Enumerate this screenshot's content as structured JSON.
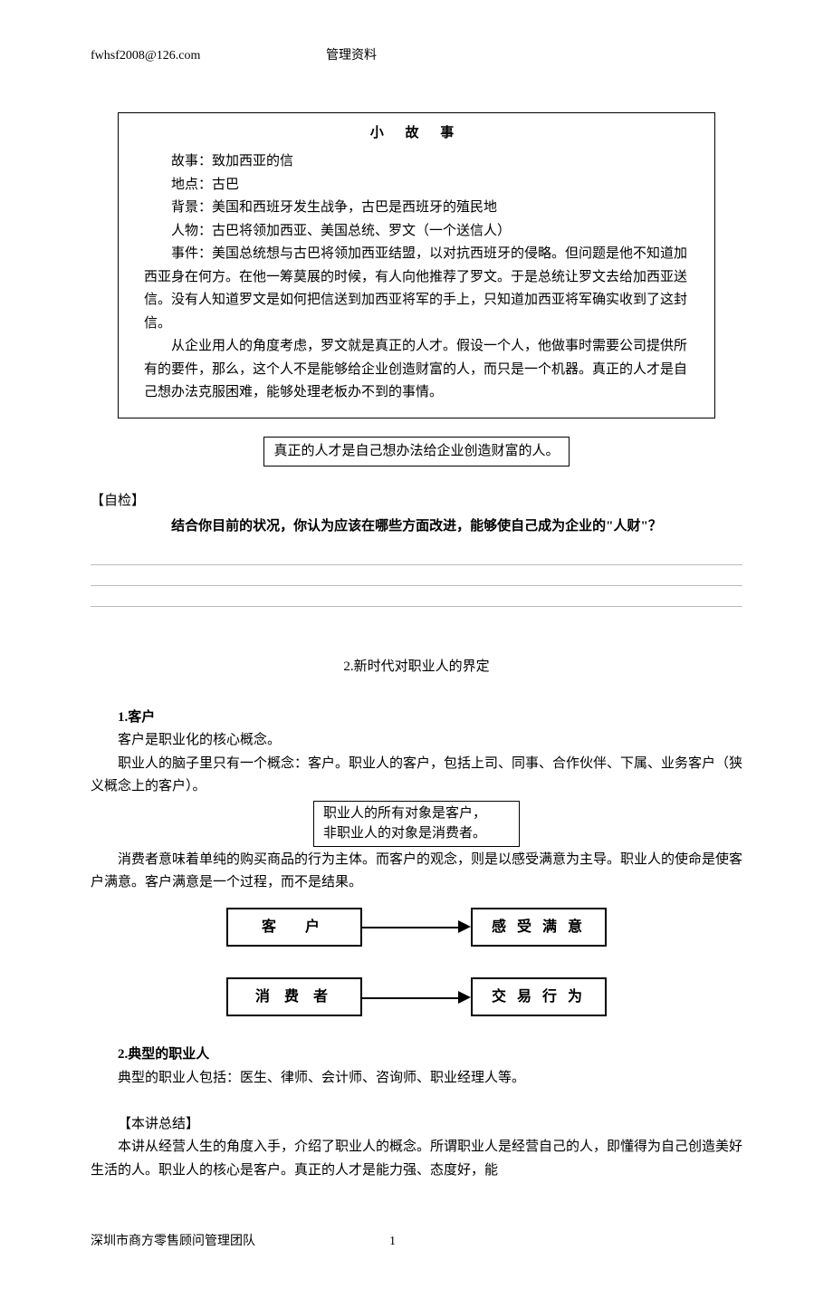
{
  "header": {
    "email": "fwhsf2008@126.com",
    "label": "管理资料"
  },
  "story": {
    "title": "小 故 事",
    "lines": [
      "故事：致加西亚的信",
      "地点：古巴",
      "背景：美国和西班牙发生战争，古巴是西班牙的殖民地",
      "人物：古巴将领加西亚、美国总统、罗文（一个送信人）"
    ],
    "para1": "事件：美国总统想与古巴将领加西亚结盟，以对抗西班牙的侵略。但问题是他不知道加西亚身在何方。在他一筹莫展的时候，有人向他推荐了罗文。于是总统让罗文去给加西亚送信。没有人知道罗文是如何把信送到加西亚将军的手上，只知道加西亚将军确实收到了这封信。",
    "para2": "从企业用人的角度考虑，罗文就是真正的人才。假设一个人，他做事时需要公司提供所有的要件，那么，这个人不是能够给企业创造财富的人，而只是一个机器。真正的人才是自己想办法克服困难，能够处理老板办不到的事情。"
  },
  "center_box": "真正的人才是自己想办法给企业创造财富的人。",
  "self_check": {
    "tag": "【自检】",
    "question": "结合你目前的状况，你认为应该在哪些方面改进，能够使自己成为企业的\"人财\"？"
  },
  "section2": {
    "title": "2.新时代对职业人的界定",
    "h1": "1.客户",
    "p1": "客户是职业化的核心概念。",
    "p2": "职业人的脑子里只有一个概念：客户。职业人的客户，包括上司、同事、合作伙伴、下属、业务客户（狭义概念上的客户）。",
    "box_l1": "职业人的所有对象是客户，",
    "box_l2": "非职业人的对象是消费者。",
    "p3": "消费者意味着单纯的购买商品的行为主体。而客户的观念，则是以感受满意为主导。职业人的使命是使客户满意。客户满意是一个过程，而不是结果。"
  },
  "diagram": {
    "r1_left": "客　户",
    "r1_right": "感 受 满 意",
    "r2_left": "消 费 者",
    "r2_right": "交 易 行 为"
  },
  "section3": {
    "h2": "2.典型的职业人",
    "p1": "典型的职业人包括：医生、律师、会计师、咨询师、职业经理人等。",
    "summary_tag": "【本讲总结】",
    "summary": "本讲从经营人生的角度入手，介绍了职业人的概念。所谓职业人是经营自己的人，即懂得为自己创造美好生活的人。职业人的核心是客户。真正的人才是能力强、态度好，能"
  },
  "footer": {
    "org": "深圳市商方零售顾问管理团队",
    "page": "1"
  }
}
